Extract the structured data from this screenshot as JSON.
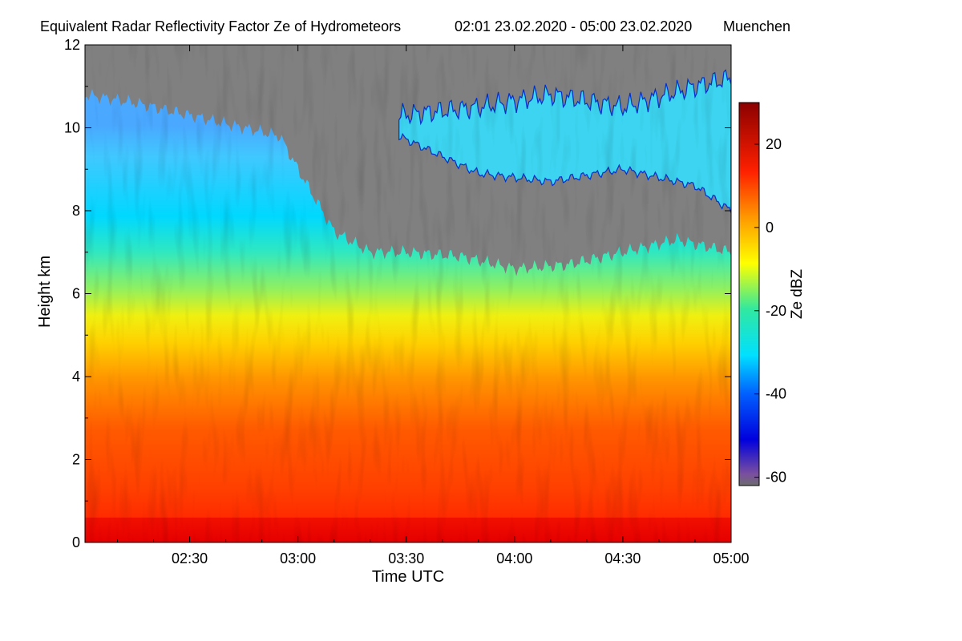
{
  "chart_data": {
    "type": "heatmap",
    "title": "Equivalent Radar Reflectivity Factor Ze of Hydrometeors",
    "time_range": "02:01 23.02.2020 - 05:00 23.02.2020",
    "location": "Muenchen",
    "xlabel": "Time UTC",
    "ylabel": "Height km",
    "x_ticks": [
      "02:30",
      "03:00",
      "03:30",
      "04:00",
      "04:30",
      "05:00"
    ],
    "x_tick_minutes": [
      150,
      180,
      210,
      240,
      270,
      300
    ],
    "xlim_minutes": [
      121,
      300
    ],
    "y_ticks": [
      0,
      2,
      4,
      6,
      8,
      10,
      12
    ],
    "ylim": [
      0,
      12
    ],
    "colorbar": {
      "label": "Ze dBZ",
      "ticks": [
        20,
        0,
        -20,
        -40,
        -60
      ],
      "range": [
        -62,
        30
      ],
      "no_signal_color": "#808080",
      "stops": [
        "#6d6d6d",
        "#0000dd",
        "#00c8ff",
        "#ffff00",
        "#ff8800",
        "#ff1000",
        "#8b0000"
      ]
    },
    "layers": [
      {
        "name": "cloud top (km)",
        "x_minutes": [
          121,
          135,
          150,
          165,
          175,
          180,
          190,
          200,
          210,
          225,
          240,
          255,
          270,
          285,
          300
        ],
        "values": [
          10.8,
          10.6,
          10.3,
          10.0,
          9.8,
          9.0,
          7.5,
          7.0,
          7.0,
          6.9,
          6.6,
          6.7,
          7.0,
          7.3,
          7.0
        ]
      },
      {
        "name": "upper layer base (km)",
        "x_minutes": [
          208,
          230,
          250,
          270,
          290,
          300
        ],
        "values": [
          9.8,
          8.9,
          8.7,
          9.0,
          8.6,
          8.0
        ]
      },
      {
        "name": "upper layer top (km)",
        "x_minutes": [
          208,
          230,
          250,
          270,
          290,
          300
        ],
        "values": [
          10.3,
          10.5,
          10.8,
          10.5,
          11.0,
          11.2
        ]
      }
    ]
  }
}
